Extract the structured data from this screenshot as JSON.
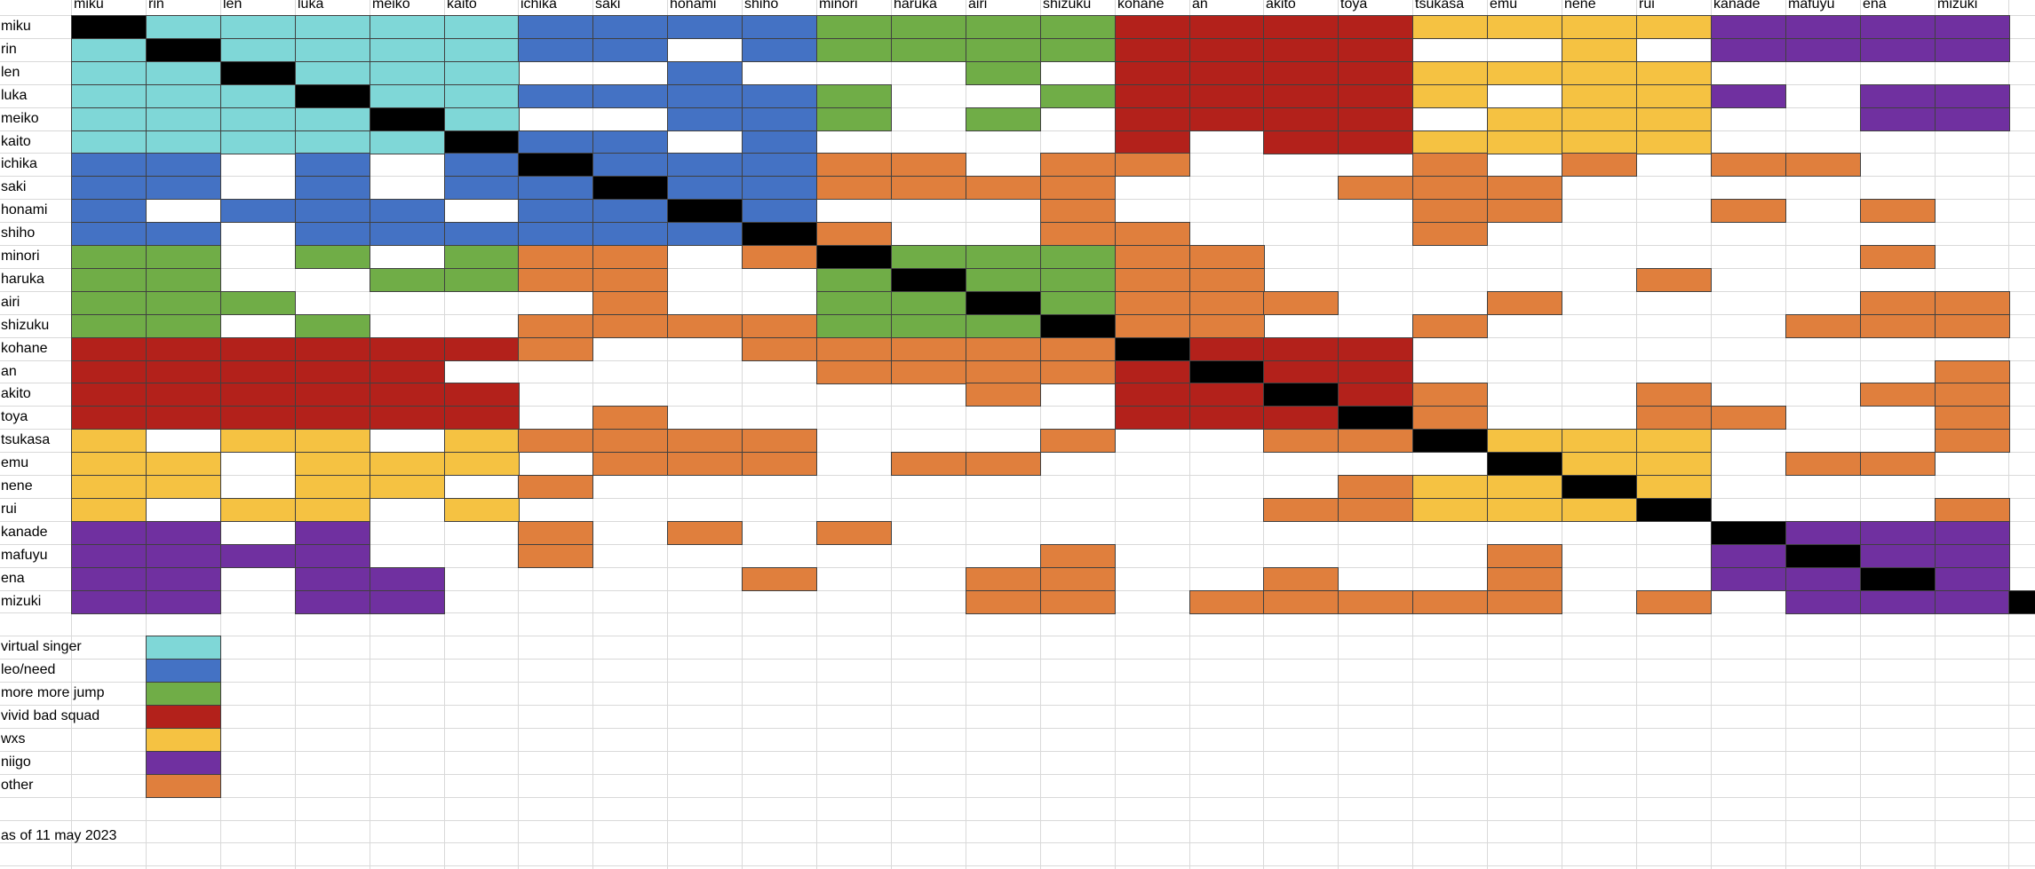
{
  "colors": {
    "vs": "#7fd7d7",
    "ln": "#4472c4",
    "mmj": "#70ad47",
    "vbs": "#b3211b",
    "wxs": "#f5c242",
    "niigo": "#7030a0",
    "other": "#e07f3d",
    "self": "#000000"
  },
  "characters": [
    "miku",
    "rin",
    "len",
    "luka",
    "meiko",
    "kaito",
    "ichika",
    "saki",
    "honami",
    "shiho",
    "minori",
    "haruka",
    "airi",
    "shizuku",
    "kohane",
    "an",
    "akito",
    "toya",
    "tsukasa",
    "emu",
    "nene",
    "rui",
    "kanade",
    "mafuyu",
    "ena",
    "mizuki"
  ],
  "matrix": [
    "XVVVVVLLLLMMMMBBBBWWWWNNNN",
    "VXVVVVLL.LMMMMBBBB..W.NNNN",
    "VVXVVV..L...M.BBBBWWWW....",
    "VVVXVVLLLLM..MBBBBW.WWN.NN",
    "VVVVXV..LLM.M.BBBB.WWW..NN",
    "VVVVVXLL.L....B.BBWWWW....",
    "LL.L.LXLLLOO.OO...O.O.OO..",
    "LL.L.LLXLLOOOO...OOO......",
    "L.LLL.LLXL...O....OO..O.O.",
    "LL.LLLLLLXO..OO...O.......",
    "MM.M.MOO.OXMMMOO........O.",
    "MM..MMOO..MXMMOO.....O....",
    "MMM....O..MMXMOOO..O....OO",
    "MM.M..OOOOMMMXOO..O....OOO",
    "BBBBBBO..OOOOOXBBB........",
    "BBBBB.....OOOOBXBB.......O",
    "BBBBBB......O.BBXBO..O..OO",
    "BBBBBB.O......BBBXO..OO..O",
    "W.WW.WOOOO...O..OOXWWW...O",
    "WW.WWW.OOO.OO......XWW.OO.",
    "WW.WW.O..........OWWXW....",
    "W.WW.W..........OOWWWX...O",
    "NN.N..O.O.O...........XNNN",
    "NNNN..O......O.....O..NXNN",
    "NN.NN....O..OO..O..O..NNXN",
    "NN.NN.......OO.OOOOO.O.NNNX"
  ],
  "legend": [
    {
      "label": "virtual singer",
      "color": "#7fd7d7"
    },
    {
      "label": "leo/need",
      "color": "#4472c4"
    },
    {
      "label": "more more jump",
      "color": "#70ad47"
    },
    {
      "label": "vivid bad squad",
      "color": "#b3211b"
    },
    {
      "label": "wxs",
      "color": "#f5c242"
    },
    {
      "label": "niigo",
      "color": "#7030a0"
    },
    {
      "label": "other",
      "color": "#e07f3d"
    }
  ],
  "note": "as of 11 may 2023"
}
